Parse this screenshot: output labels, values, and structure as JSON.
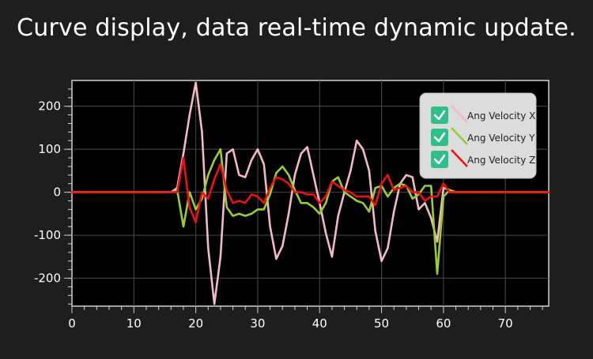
{
  "header": {
    "title": "Curve display, data real-time dynamic update."
  },
  "chart_data": {
    "type": "line",
    "title": "Curve display, data real-time dynamic update.",
    "xlabel": "",
    "ylabel": "",
    "xlim": [
      0,
      77
    ],
    "ylim": [
      -265,
      260
    ],
    "x_ticks": [
      0,
      10,
      20,
      30,
      40,
      50,
      60,
      70
    ],
    "y_ticks": [
      200,
      100,
      0,
      -100,
      -200
    ],
    "grid": true,
    "legend_position": "top-right",
    "series": [
      {
        "name": "Ang Velocity X",
        "color": "#f5b8c5",
        "x": [
          0,
          14,
          15,
          16,
          17,
          18,
          19,
          20,
          21,
          22,
          23,
          24,
          25,
          26,
          27,
          28,
          29,
          30,
          31,
          32,
          33,
          34,
          35,
          36,
          37,
          38,
          39,
          40,
          41,
          42,
          43,
          44,
          45,
          46,
          47,
          48,
          49,
          50,
          51,
          52,
          53,
          54,
          55,
          56,
          57,
          58,
          59,
          60,
          61,
          62,
          63,
          77
        ],
        "y": [
          0,
          0,
          0,
          0,
          10,
          90,
          180,
          255,
          140,
          -130,
          -260,
          -150,
          90,
          100,
          40,
          35,
          75,
          100,
          65,
          -80,
          -155,
          -125,
          -50,
          40,
          90,
          105,
          40,
          -25,
          -95,
          -150,
          -55,
          0,
          50,
          120,
          100,
          50,
          -90,
          -160,
          -130,
          -45,
          20,
          40,
          35,
          -40,
          -25,
          -60,
          -115,
          10,
          5,
          0,
          0,
          0
        ]
      },
      {
        "name": "Ang Velocity Y",
        "color": "#9acd32",
        "x": [
          0,
          14,
          15,
          16,
          17,
          18,
          19,
          20,
          21,
          22,
          23,
          24,
          25,
          26,
          27,
          28,
          29,
          30,
          31,
          32,
          33,
          34,
          35,
          36,
          37,
          38,
          39,
          40,
          41,
          42,
          43,
          44,
          45,
          46,
          47,
          48,
          49,
          50,
          51,
          52,
          53,
          54,
          55,
          56,
          57,
          58,
          59,
          60,
          61,
          62,
          63,
          77
        ],
        "y": [
          0,
          0,
          0,
          0,
          5,
          -80,
          0,
          -40,
          -15,
          40,
          75,
          100,
          -35,
          -55,
          -50,
          -55,
          -50,
          -40,
          -40,
          -5,
          45,
          60,
          40,
          5,
          -25,
          -25,
          -35,
          -50,
          -25,
          25,
          35,
          0,
          -10,
          -20,
          -25,
          -45,
          10,
          15,
          -10,
          10,
          20,
          15,
          -15,
          -5,
          15,
          15,
          -190,
          -10,
          5,
          0,
          0,
          0
        ]
      },
      {
        "name": "Ang Velocity Z",
        "color": "#ee1111",
        "x": [
          0,
          14,
          15,
          16,
          17,
          18,
          19,
          20,
          21,
          22,
          23,
          24,
          25,
          26,
          27,
          28,
          29,
          30,
          31,
          32,
          33,
          34,
          35,
          36,
          37,
          38,
          39,
          40,
          41,
          42,
          43,
          44,
          45,
          46,
          47,
          48,
          49,
          50,
          51,
          52,
          53,
          54,
          55,
          56,
          57,
          58,
          59,
          60,
          61,
          62,
          63,
          77
        ],
        "y": [
          0,
          0,
          0,
          0,
          0,
          80,
          -35,
          -70,
          0,
          -15,
          30,
          65,
          5,
          -25,
          -20,
          -25,
          -5,
          -10,
          -25,
          10,
          35,
          30,
          20,
          0,
          0,
          -5,
          -5,
          -25,
          -10,
          25,
          15,
          5,
          0,
          -10,
          -10,
          -10,
          -30,
          20,
          40,
          5,
          10,
          15,
          0,
          0,
          -20,
          -10,
          -10,
          20,
          0,
          0,
          0,
          0
        ]
      }
    ]
  }
}
